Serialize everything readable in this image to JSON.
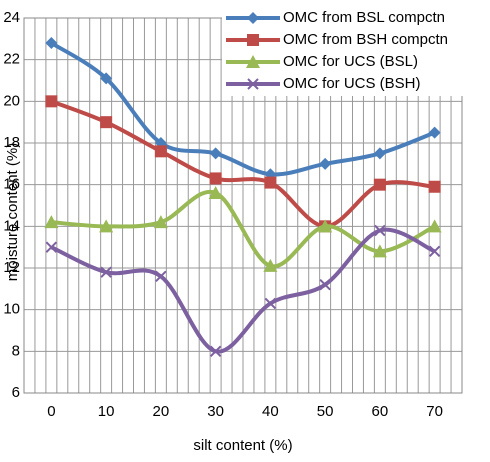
{
  "chart_data": {
    "type": "line",
    "categories": [
      "0",
      "10",
      "20",
      "30",
      "40",
      "50",
      "60",
      "70"
    ],
    "x_label": "silt content (%)",
    "y_label": "moisture content (%)",
    "ylim": [
      6,
      24
    ],
    "yticks": [
      6,
      8,
      10,
      12,
      14,
      16,
      18,
      20,
      22,
      24
    ],
    "grid": true,
    "series": [
      {
        "name": "OMC from BSL compctn",
        "color": "#4a7ebb",
        "marker": "diamond",
        "values": [
          22.8,
          21.1,
          18.0,
          17.5,
          16.5,
          17.0,
          17.5,
          18.5
        ]
      },
      {
        "name": "OMC from BSH compctn",
        "color": "#be4b48",
        "marker": "square",
        "values": [
          20.0,
          19.0,
          17.6,
          16.3,
          16.1,
          14.0,
          16.0,
          15.9
        ]
      },
      {
        "name": "OMC for UCS (BSL)",
        "color": "#98b954",
        "marker": "triangle",
        "values": [
          14.2,
          14.0,
          14.2,
          15.6,
          12.1,
          14.0,
          12.8,
          14.0
        ]
      },
      {
        "name": "OMC for UCS (BSH)",
        "color": "#7d60a0",
        "marker": "x",
        "values": [
          13.0,
          11.8,
          11.6,
          8.0,
          10.3,
          11.2,
          13.8,
          12.8
        ]
      }
    ]
  }
}
